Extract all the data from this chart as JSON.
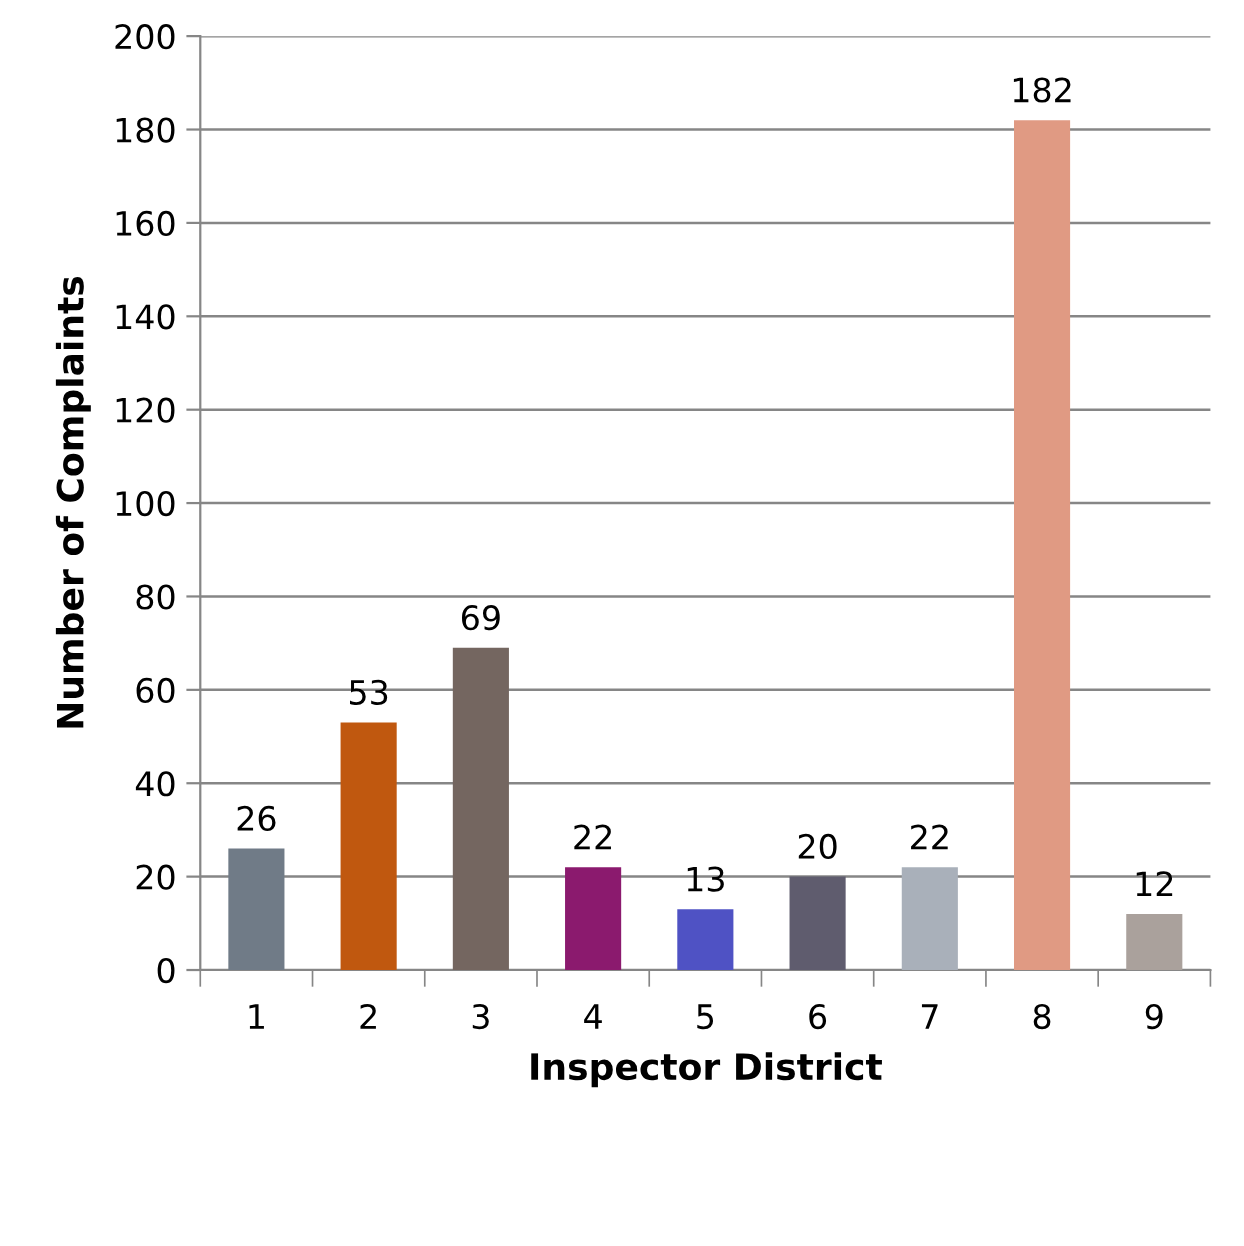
{
  "chart_data": {
    "type": "bar",
    "xlabel": "Inspector District",
    "ylabel": "Number of Complaints",
    "categories": [
      "1",
      "2",
      "3",
      "4",
      "5",
      "6",
      "7",
      "8",
      "9"
    ],
    "values": [
      26,
      53,
      69,
      22,
      13,
      20,
      22,
      182,
      12
    ],
    "colors": [
      "#707b87",
      "#c0580f",
      "#746660",
      "#8b1a6e",
      "#4f52c4",
      "#5f5c6e",
      "#a9b0ba",
      "#e09a83",
      "#aaa19c"
    ],
    "ylim": [
      0,
      200
    ],
    "yticks": [
      0,
      20,
      40,
      60,
      80,
      100,
      120,
      140,
      160,
      180,
      200
    ],
    "grid": "y",
    "data_labels": true
  }
}
